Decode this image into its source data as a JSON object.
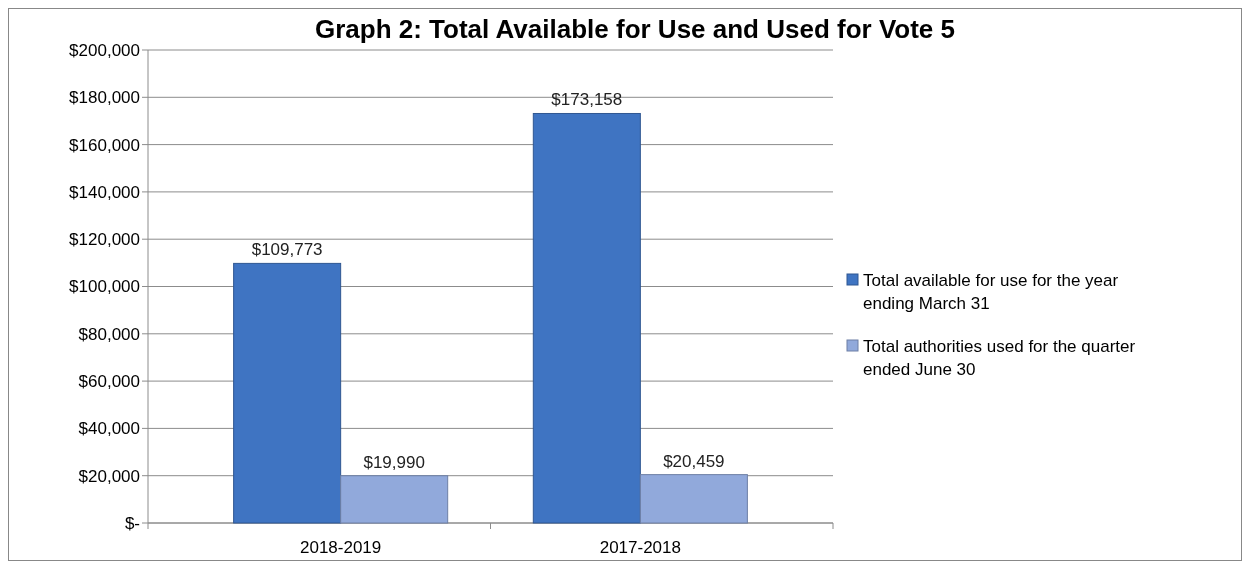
{
  "chart_data": {
    "type": "bar",
    "title": "Graph 2: Total Available for Use and Used for Vote 5",
    "categories": [
      "2018-2019",
      "2017-2018"
    ],
    "series": [
      {
        "name": "Total available for use for the year ending March 31",
        "color": "#3f74c2",
        "values": [
          109773,
          173158
        ],
        "value_labels": [
          "$109,773",
          "$173,158"
        ]
      },
      {
        "name": "Total authorities used for the quarter ended June 30",
        "color": "#91a9db",
        "values": [
          19990,
          20459
        ],
        "value_labels": [
          "$19,990",
          "$20,459"
        ]
      }
    ],
    "ylim": [
      0,
      200000
    ],
    "yticks": [
      {
        "value": 0,
        "label": "$-"
      },
      {
        "value": 20000,
        "label": "$20,000"
      },
      {
        "value": 40000,
        "label": "$40,000"
      },
      {
        "value": 60000,
        "label": "$60,000"
      },
      {
        "value": 80000,
        "label": "$80,000"
      },
      {
        "value": 100000,
        "label": "$100,000"
      },
      {
        "value": 120000,
        "label": "$120,000"
      },
      {
        "value": 140000,
        "label": "$140,000"
      },
      {
        "value": 160000,
        "label": "$160,000"
      },
      {
        "value": 180000,
        "label": "$180,000"
      },
      {
        "value": 200000,
        "label": "$200,000"
      }
    ],
    "grid": "y",
    "legend": "right"
  }
}
